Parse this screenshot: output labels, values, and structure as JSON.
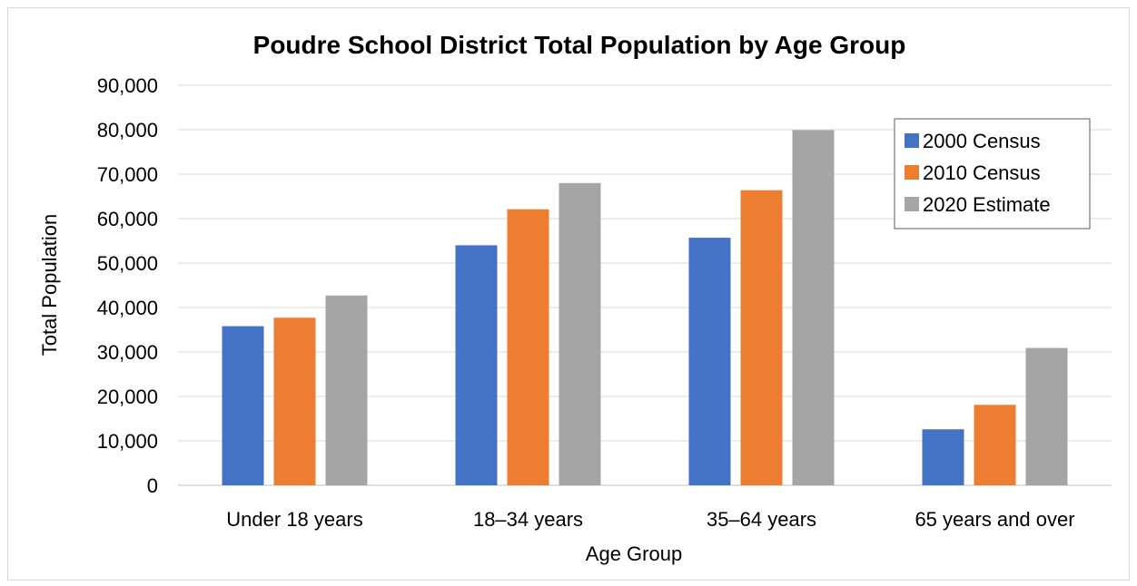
{
  "chart_data": {
    "type": "bar",
    "title": "Poudre School District Total Population by Age Group",
    "xlabel": "Age Group",
    "ylabel": "Total Population",
    "categories": [
      "Under 18 years",
      "18–34 years",
      "35–64 years",
      "65 years and over"
    ],
    "series": [
      {
        "name": "2000 Census",
        "color": "#4472c4",
        "values": [
          35800,
          54000,
          55700,
          12600
        ]
      },
      {
        "name": "2010 Census",
        "color": "#ed7d31",
        "values": [
          37700,
          62100,
          66400,
          18100
        ]
      },
      {
        "name": "2020 Estimate",
        "color": "#a5a5a5",
        "values": [
          42700,
          68000,
          79900,
          30900
        ]
      }
    ],
    "ylim": [
      0,
      90000
    ],
    "yticks": [
      0,
      10000,
      20000,
      30000,
      40000,
      50000,
      60000,
      70000,
      80000,
      90000
    ],
    "ytick_labels": [
      "0",
      "10,000",
      "20,000",
      "30,000",
      "40,000",
      "50,000",
      "60,000",
      "70,000",
      "80,000",
      "90,000"
    ],
    "grid": true,
    "legend_position": "top-right"
  }
}
